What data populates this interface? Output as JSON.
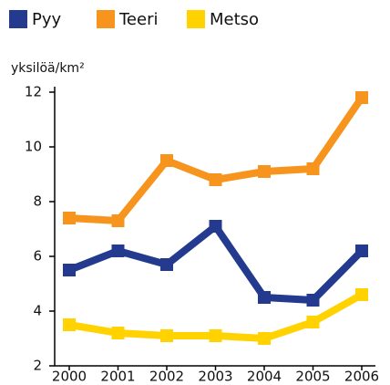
{
  "chart_data": {
    "type": "line",
    "y_label": "yksilöä/km²",
    "categories": [
      "2000",
      "2001",
      "2002",
      "2003",
      "2004",
      "2005",
      "2006"
    ],
    "series": [
      {
        "name": "Pyy",
        "color": "#233a8f",
        "values": [
          5.5,
          6.2,
          5.7,
          7.1,
          4.5,
          4.4,
          6.2
        ]
      },
      {
        "name": "Teeri",
        "color": "#f7941d",
        "values": [
          7.4,
          7.3,
          9.5,
          8.8,
          9.1,
          9.2,
          11.8
        ]
      },
      {
        "name": "Metso",
        "color": "#ffd200",
        "values": [
          3.5,
          3.2,
          3.1,
          3.1,
          3.0,
          3.6,
          4.6
        ]
      }
    ],
    "ylim": [
      2,
      12
    ],
    "yticks": [
      2,
      4,
      6,
      8,
      10,
      12
    ],
    "grid": false
  }
}
